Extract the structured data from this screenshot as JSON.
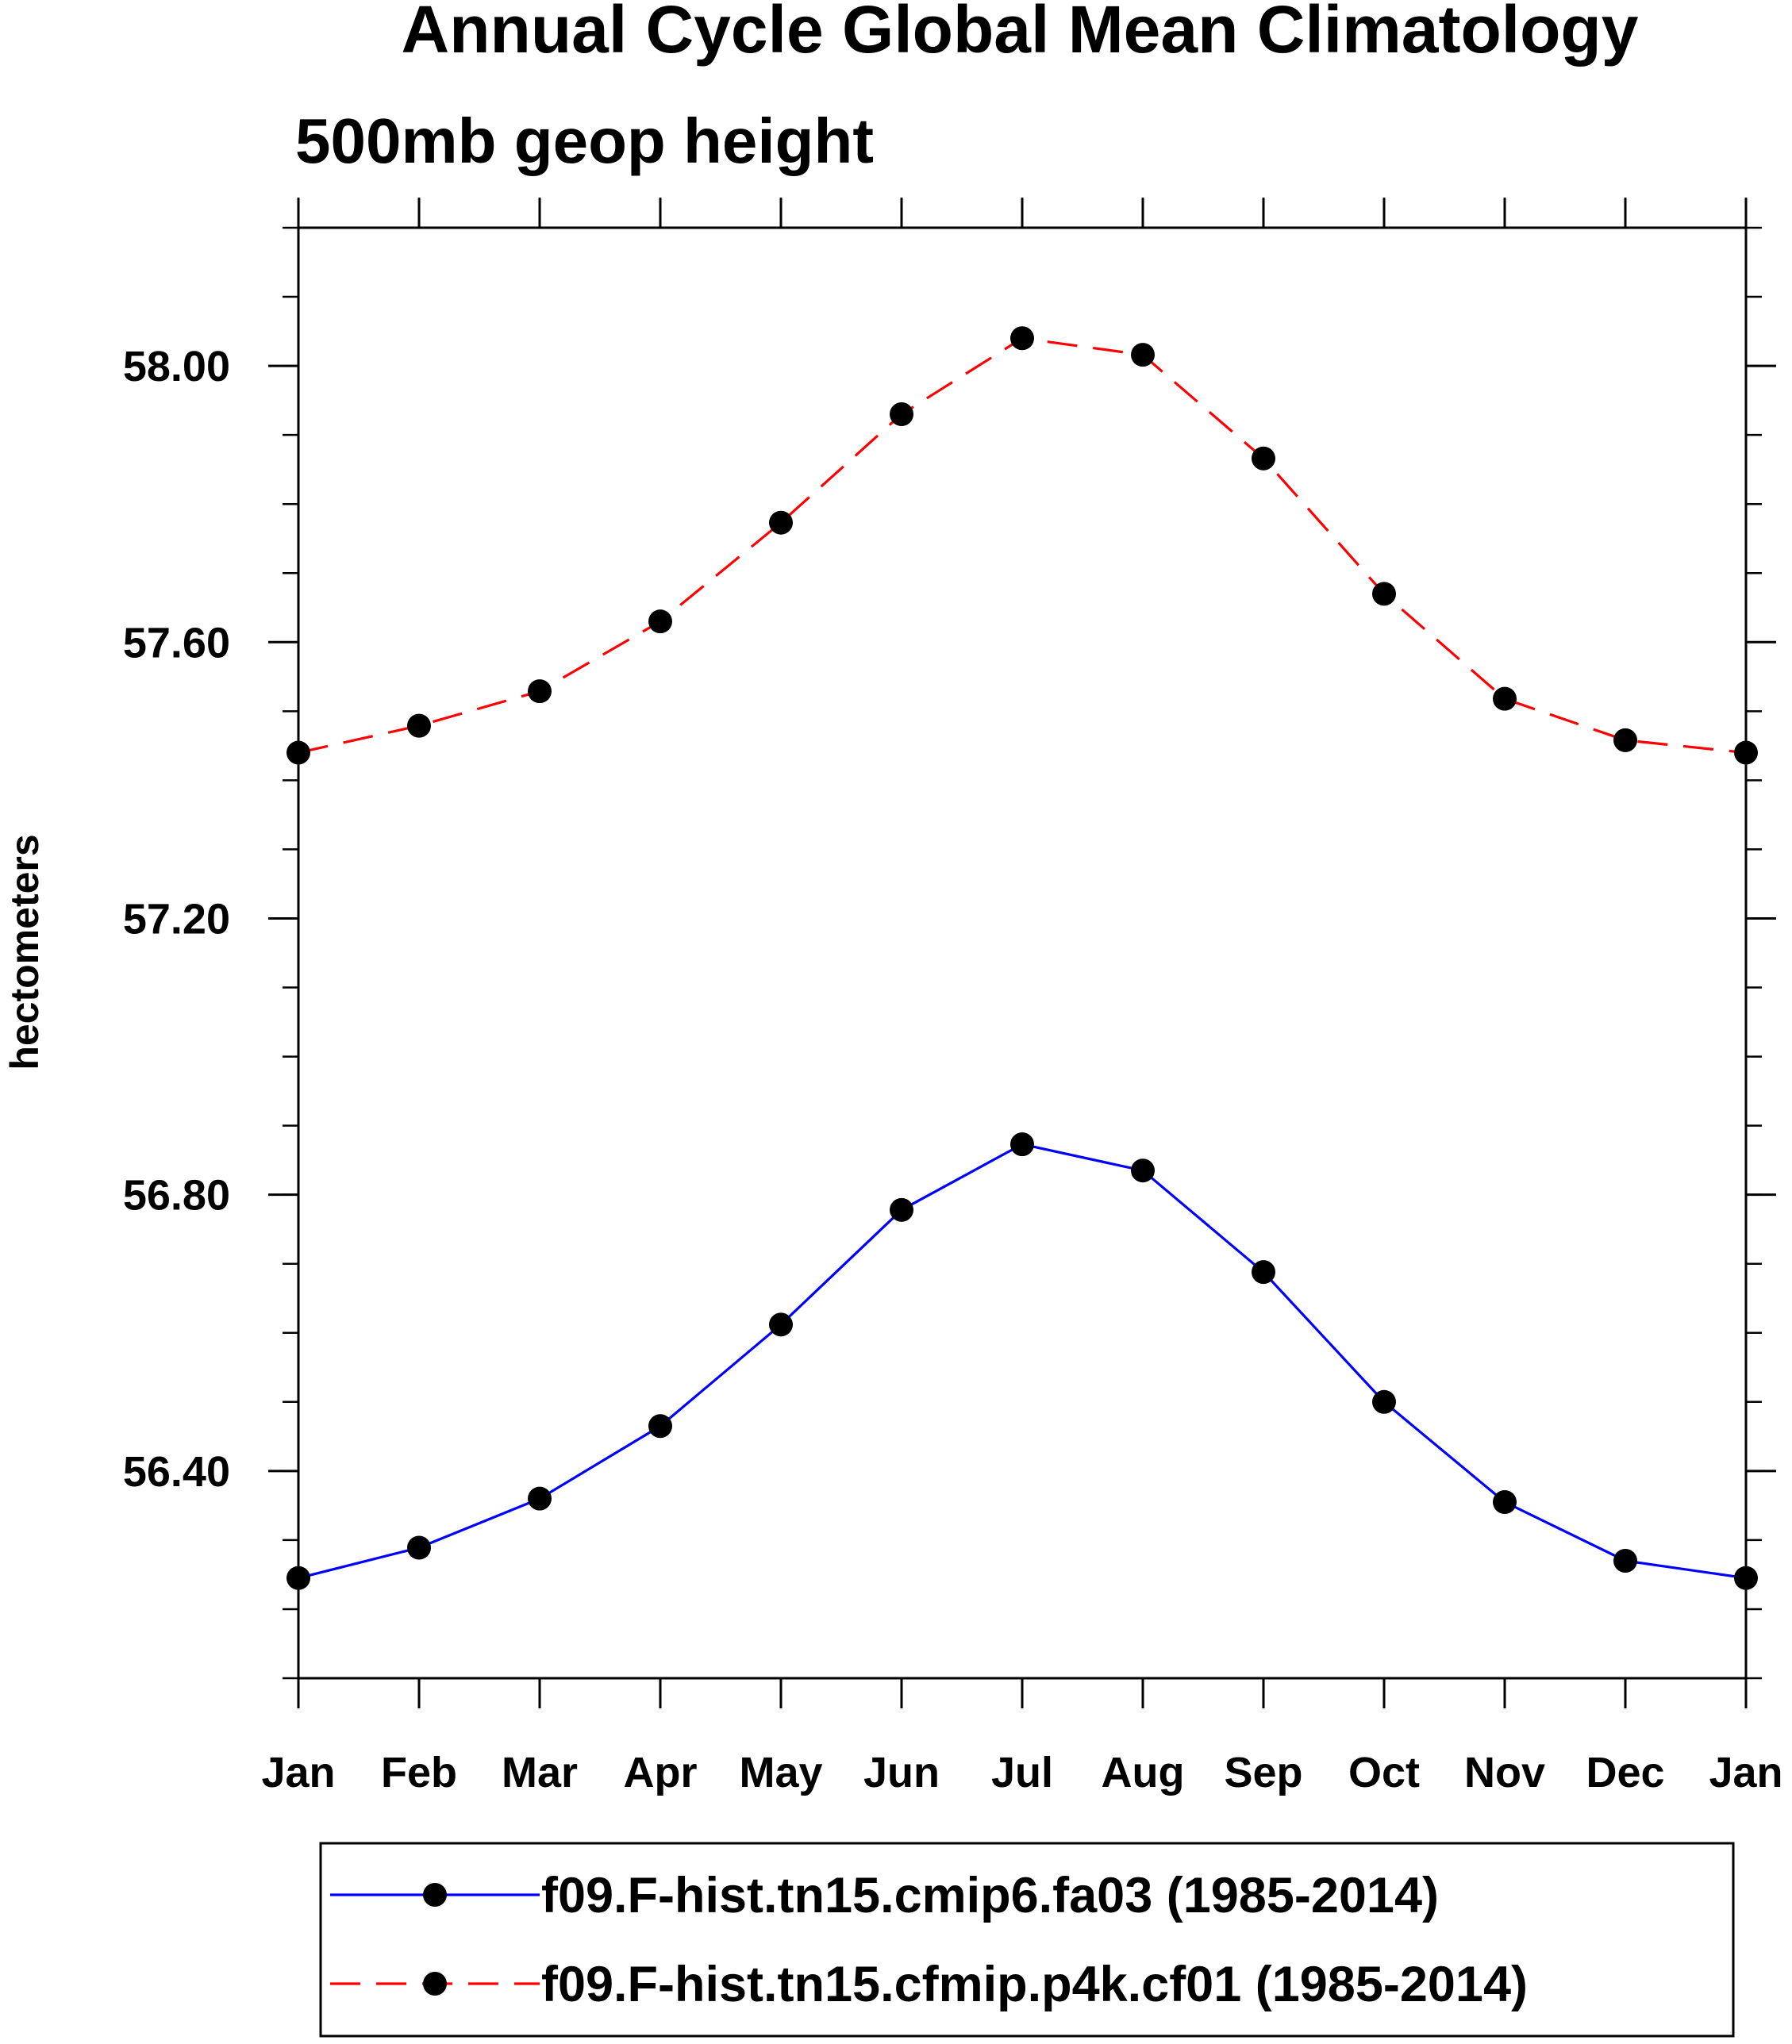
{
  "chart_data": {
    "type": "line",
    "title": "Annual Cycle Global Mean Climatology",
    "subtitle": "500mb geop height",
    "xlabel": "",
    "ylabel": "hectometers",
    "categories": [
      "Jan",
      "Feb",
      "Mar",
      "Apr",
      "May",
      "Jun",
      "Jul",
      "Aug",
      "Sep",
      "Oct",
      "Nov",
      "Dec",
      "Jan"
    ],
    "ylim": [
      56.1,
      58.2
    ],
    "yticks_major": [
      56.4,
      56.8,
      57.2,
      57.6,
      58.0
    ],
    "ytick_labels": [
      "56.40",
      "56.80",
      "57.20",
      "57.60",
      "58.00"
    ],
    "ytick_minor_step": 0.1,
    "grid": false,
    "legend_position": "bottom",
    "series": [
      {
        "name": "f09.F-hist.tn15.cmip6.fa03 (1985-2014)",
        "color": "#0000ff",
        "dash": "solid",
        "marker": "filled-circle",
        "values": [
          56.245,
          56.289,
          56.36,
          56.465,
          56.612,
          56.778,
          56.873,
          56.835,
          56.688,
          56.5,
          56.355,
          56.27,
          56.245
        ]
      },
      {
        "name": "f09.F-hist.tn15.cfmip.p4k.cf01 (1985-2014)",
        "color": "#ff0000",
        "dash": "dashed",
        "marker": "filled-circle",
        "values": [
          57.44,
          57.479,
          57.529,
          57.63,
          57.773,
          57.93,
          58.04,
          58.016,
          57.866,
          57.67,
          57.518,
          57.458,
          57.44
        ]
      }
    ]
  }
}
